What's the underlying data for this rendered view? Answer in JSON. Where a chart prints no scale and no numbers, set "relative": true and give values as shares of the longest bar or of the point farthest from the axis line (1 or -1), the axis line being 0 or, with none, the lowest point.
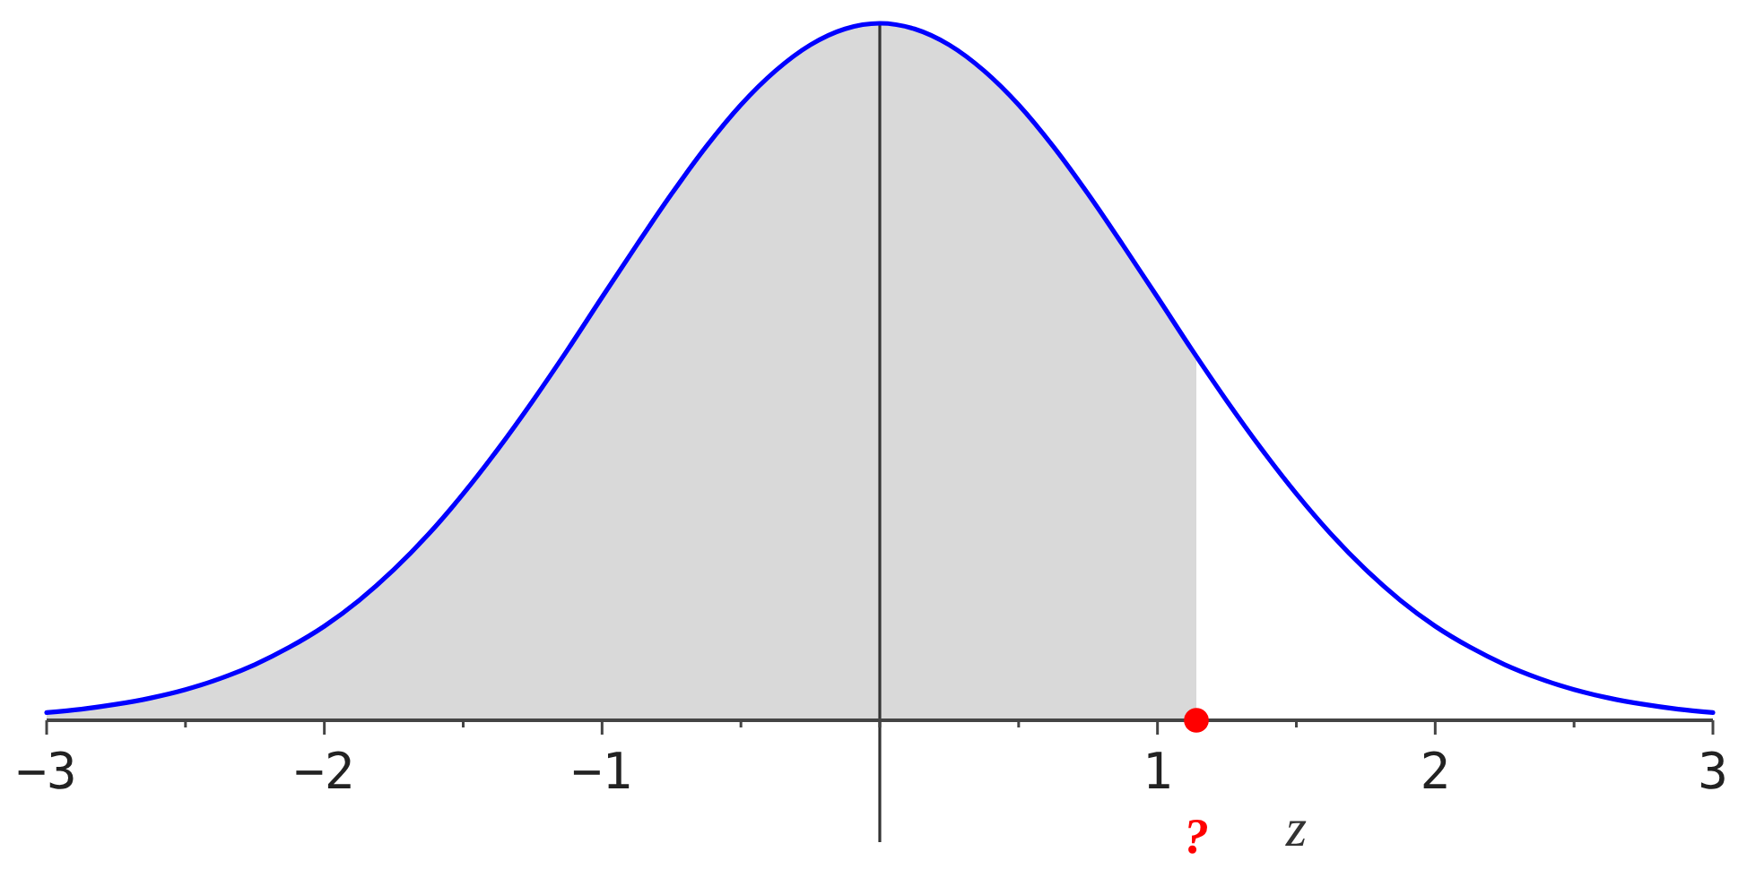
{
  "chart_data": {
    "type": "line",
    "relative": true,
    "xlabel": "z",
    "xlim": [
      -3,
      3
    ],
    "xticks": [
      -3,
      {
        "value": -2.5,
        "label": null
      },
      -2,
      {
        "value": -1.5,
        "label": null
      },
      -1,
      {
        "value": -0.5,
        "label": null
      },
      {
        "value": 0,
        "label": null
      },
      {
        "value": 0.5,
        "label": null
      },
      1,
      {
        "value": 1.5,
        "label": null
      },
      2,
      {
        "value": 2.5,
        "label": null
      },
      3
    ],
    "series": [
      {
        "type": "area",
        "color": "#d9d9d9",
        "x": [
          -3,
          -2.875,
          -2.75,
          -2.625,
          -2.5,
          -2.375,
          -2.25,
          -2.125,
          -2,
          -1.875,
          -1.75,
          -1.625,
          -1.5,
          -1.375,
          -1.25,
          -1.125,
          -1,
          -0.875,
          -0.75,
          -0.625,
          -0.5,
          -0.375,
          -0.25,
          -0.125,
          0,
          0.125,
          0.25,
          0.375,
          0.5,
          0.625,
          0.75,
          0.875,
          1,
          1.125,
          1.14
        ],
        "values": [
          0.011,
          0.016,
          0.023,
          0.032,
          0.044,
          0.06,
          0.08,
          0.105,
          0.135,
          0.172,
          0.216,
          0.267,
          0.325,
          0.389,
          0.458,
          0.531,
          0.607,
          0.682,
          0.755,
          0.823,
          0.883,
          0.932,
          0.969,
          0.992,
          1,
          0.992,
          0.969,
          0.932,
          0.883,
          0.823,
          0.755,
          0.682,
          0.607,
          0.531,
          0.522
        ]
      },
      {
        "color": "#0000ff",
        "x": [
          -3,
          -2.875,
          -2.75,
          -2.625,
          -2.5,
          -2.375,
          -2.25,
          -2.125,
          -2,
          -1.875,
          -1.75,
          -1.625,
          -1.5,
          -1.375,
          -1.25,
          -1.125,
          -1,
          -0.875,
          -0.75,
          -0.625,
          -0.5,
          -0.375,
          -0.25,
          -0.125,
          0,
          0.125,
          0.25,
          0.375,
          0.5,
          0.625,
          0.75,
          0.875,
          1,
          1.125,
          1.25,
          1.375,
          1.5,
          1.625,
          1.75,
          1.875,
          2,
          2.125,
          2.25,
          2.375,
          2.5,
          2.625,
          2.75,
          2.875,
          3
        ],
        "values": [
          0.011,
          0.016,
          0.023,
          0.032,
          0.044,
          0.06,
          0.08,
          0.105,
          0.135,
          0.172,
          0.216,
          0.267,
          0.325,
          0.389,
          0.458,
          0.531,
          0.607,
          0.682,
          0.755,
          0.823,
          0.883,
          0.932,
          0.969,
          0.992,
          1,
          0.992,
          0.969,
          0.932,
          0.883,
          0.823,
          0.755,
          0.682,
          0.607,
          0.531,
          0.458,
          0.389,
          0.325,
          0.267,
          0.216,
          0.172,
          0.135,
          0.105,
          0.08,
          0.06,
          0.044,
          0.032,
          0.023,
          0.016,
          0.011
        ]
      },
      {
        "type": "scatter",
        "color": "#ff0000",
        "marker": "circle",
        "x": [
          1.14
        ],
        "values": [
          0
        ]
      }
    ],
    "annotations": [
      {
        "text": "?",
        "x": 1.14,
        "y": 0
      }
    ]
  }
}
